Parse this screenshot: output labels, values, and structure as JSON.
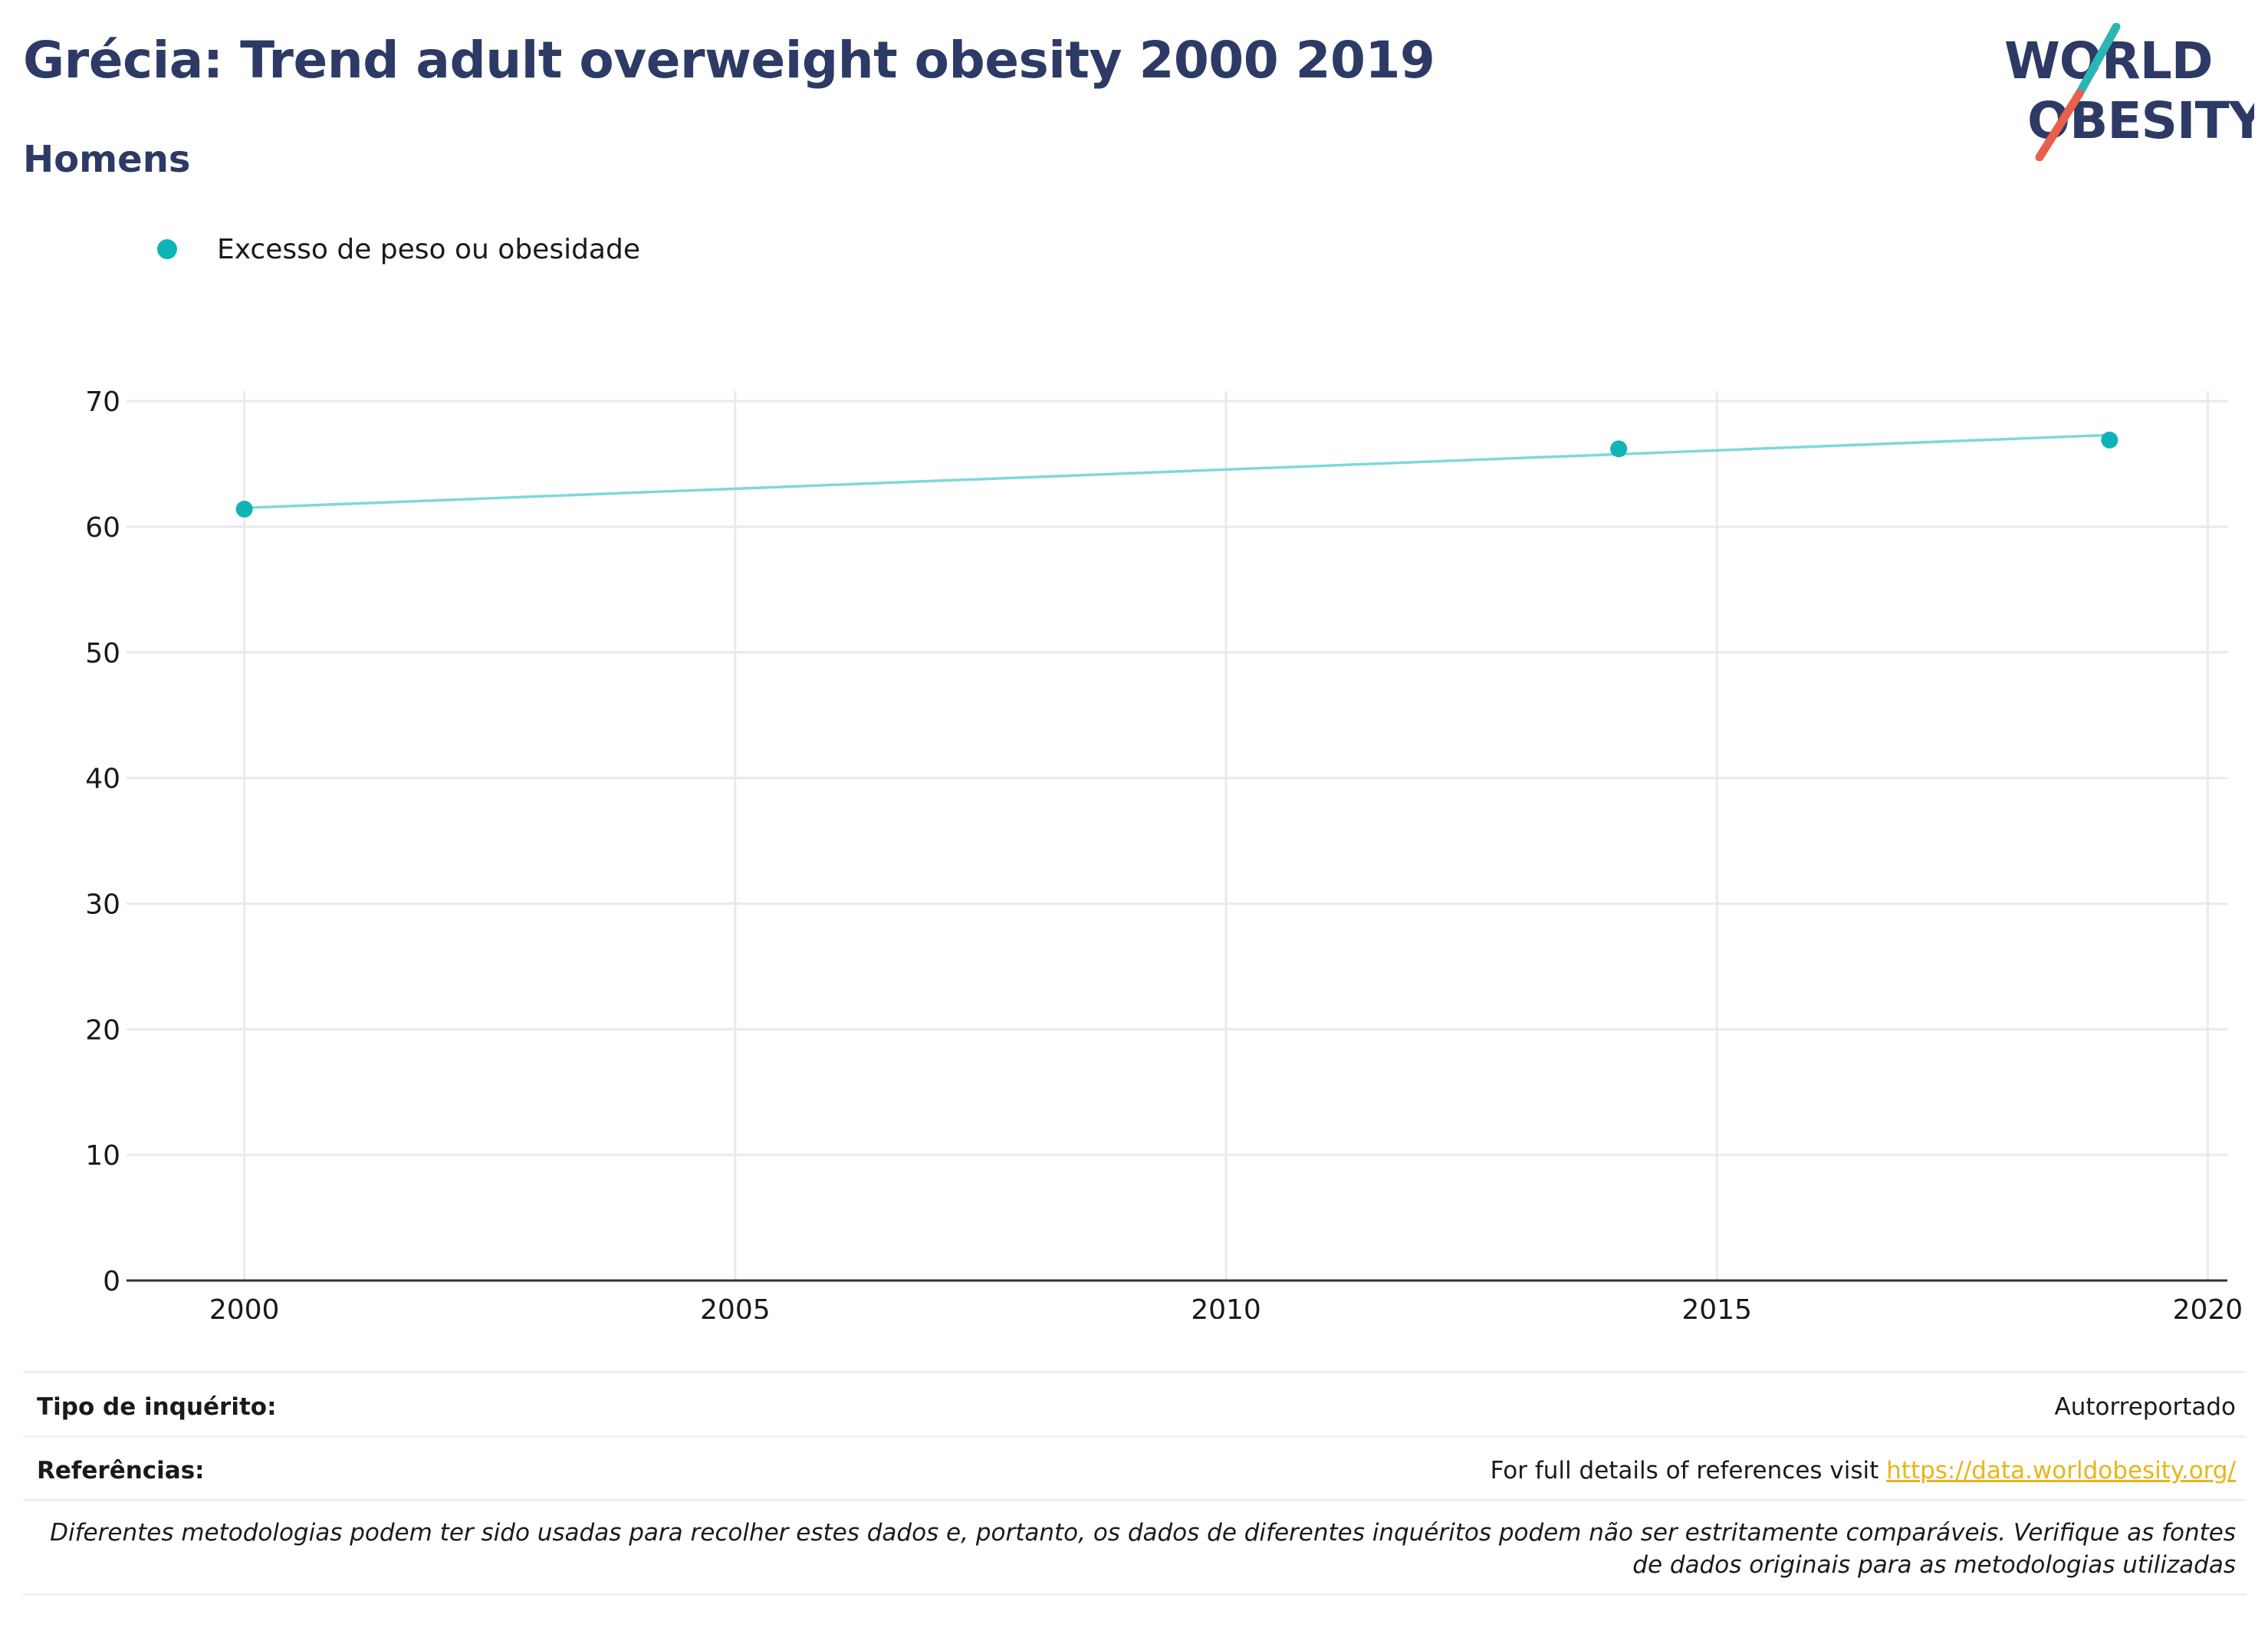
{
  "header": {
    "title": "Grécia: Trend adult overweight obesity 2000 2019",
    "subtitle": "Homens"
  },
  "logo": {
    "line1": "WORLD",
    "line2": "OBESITY",
    "accent_teal": "#2ab7b3",
    "accent_red": "#e8604c",
    "text_color": "#2d3a66"
  },
  "legend": {
    "items": [
      {
        "label": "Excesso de peso ou obesidade",
        "color": "#10b3b8"
      }
    ]
  },
  "chart_data": {
    "type": "scatter",
    "title": "",
    "xlabel": "",
    "ylabel": "",
    "x_ticks": [
      2000,
      2005,
      2010,
      2015,
      2020
    ],
    "y_ticks": [
      0,
      10,
      20,
      30,
      40,
      50,
      60,
      70
    ],
    "xlim": [
      1998.8,
      2020.2
    ],
    "ylim": [
      0,
      70.8
    ],
    "grid": true,
    "legend_position": "top-left",
    "series": [
      {
        "name": "Excesso de peso ou obesidade",
        "color": "#10b3b8",
        "points": [
          {
            "x": 2000,
            "y": 61.4
          },
          {
            "x": 2014,
            "y": 66.2
          },
          {
            "x": 2019,
            "y": 66.9
          }
        ],
        "trend": {
          "color": "#7fd8d8",
          "x": [
            2000,
            2019
          ],
          "y": [
            61.5,
            67.3
          ]
        }
      }
    ]
  },
  "footer": {
    "survey_label": "Tipo de inquérito:",
    "survey_value": "Autorreportado",
    "refs_label": "Referências:",
    "refs_text": "For full details of references visit",
    "refs_link": "https://data.worldobesity.org/",
    "note": "Diferentes metodologias podem ter sido usadas para recolher estes dados e, portanto, os dados de diferentes inquéritos podem não ser estritamente comparáveis. Verifique as fontes de dados originais para as metodologias utilizadas"
  }
}
